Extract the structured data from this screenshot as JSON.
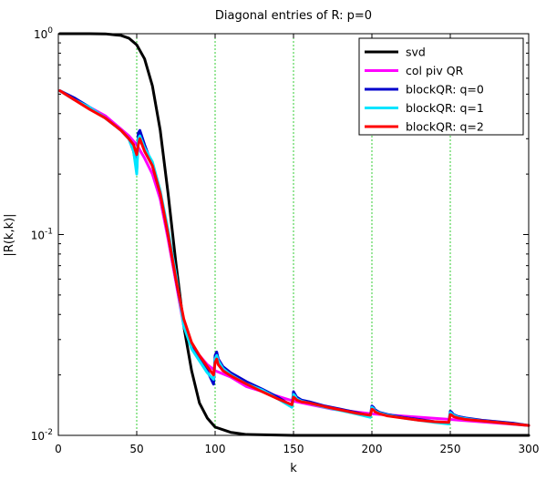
{
  "chart_data": {
    "type": "line",
    "title": "Diagonal entries of R: p=0",
    "xlabel": "k",
    "ylabel": "|R(k,k)|",
    "xlim": [
      0,
      300
    ],
    "ylim": [
      0.01,
      1
    ],
    "yscale": "log",
    "x_ticks": [
      0,
      50,
      100,
      150,
      200,
      250,
      300
    ],
    "y_ticks": [
      {
        "value": 1,
        "base": "10",
        "exp": "0"
      },
      {
        "value": 0.1,
        "base": "10",
        "exp": "-1"
      },
      {
        "value": 0.01,
        "base": "10",
        "exp": "-2"
      }
    ],
    "vlines": [
      50,
      100,
      150,
      200,
      250
    ],
    "vline_color": "#33cc33",
    "legend_position": "top-right",
    "series": [
      {
        "name": "svd",
        "color": "#000000",
        "x": [
          1,
          20,
          30,
          40,
          45,
          50,
          55,
          60,
          65,
          70,
          75,
          80,
          85,
          90,
          95,
          100,
          110,
          120,
          150,
          200,
          250,
          300
        ],
        "y": [
          1.0,
          1.0,
          0.998,
          0.98,
          0.95,
          0.88,
          0.75,
          0.55,
          0.33,
          0.16,
          0.072,
          0.035,
          0.021,
          0.0145,
          0.0122,
          0.011,
          0.01035,
          0.0101,
          0.01,
          0.01,
          0.01,
          0.01
        ]
      },
      {
        "name": "col piv QR",
        "color": "#ff00ff",
        "x": [
          1,
          10,
          20,
          30,
          40,
          45,
          50,
          55,
          60,
          65,
          70,
          75,
          80,
          85,
          90,
          95,
          100,
          110,
          120,
          150,
          175,
          200,
          250,
          300
        ],
        "y": [
          0.52,
          0.47,
          0.43,
          0.39,
          0.335,
          0.31,
          0.28,
          0.24,
          0.2,
          0.15,
          0.095,
          0.058,
          0.035,
          0.028,
          0.025,
          0.0225,
          0.021,
          0.0195,
          0.0175,
          0.0148,
          0.0135,
          0.0128,
          0.012,
          0.0112
        ]
      },
      {
        "name": "blockQR: q=0",
        "color": "#0000cc",
        "x": [
          1,
          10,
          20,
          30,
          40,
          45,
          48,
          50,
          51,
          52,
          55,
          60,
          65,
          70,
          75,
          80,
          85,
          90,
          95,
          99,
          100,
          101,
          102,
          105,
          110,
          120,
          130,
          140,
          149,
          150,
          151,
          152,
          155,
          160,
          170,
          180,
          190,
          199,
          200,
          201,
          202,
          205,
          210,
          220,
          230,
          240,
          249,
          250,
          251,
          252,
          255,
          260,
          270,
          280,
          290,
          300
        ],
        "y": [
          0.52,
          0.48,
          0.43,
          0.38,
          0.33,
          0.3,
          0.26,
          0.21,
          0.32,
          0.33,
          0.28,
          0.22,
          0.16,
          0.1,
          0.06,
          0.037,
          0.028,
          0.024,
          0.021,
          0.018,
          0.025,
          0.026,
          0.024,
          0.022,
          0.0205,
          0.0185,
          0.017,
          0.0155,
          0.014,
          0.0165,
          0.016,
          0.0155,
          0.015,
          0.0147,
          0.014,
          0.0135,
          0.013,
          0.0125,
          0.014,
          0.0138,
          0.0134,
          0.013,
          0.0127,
          0.0123,
          0.012,
          0.0117,
          0.0115,
          0.0132,
          0.013,
          0.0127,
          0.0124,
          0.0122,
          0.0119,
          0.0117,
          0.0115,
          0.0112
        ]
      },
      {
        "name": "blockQR: q=1",
        "color": "#00e5ff",
        "x": [
          1,
          10,
          20,
          30,
          40,
          45,
          48,
          50,
          51,
          52,
          55,
          60,
          65,
          70,
          75,
          80,
          85,
          90,
          95,
          99,
          100,
          101,
          102,
          105,
          110,
          120,
          130,
          140,
          149,
          150,
          151,
          152,
          155,
          160,
          170,
          180,
          190,
          199,
          200,
          201,
          202,
          205,
          210,
          220,
          230,
          240,
          249,
          250,
          251,
          252,
          255,
          260,
          270,
          280,
          290,
          300
        ],
        "y": [
          0.52,
          0.47,
          0.43,
          0.38,
          0.33,
          0.3,
          0.26,
          0.2,
          0.3,
          0.31,
          0.27,
          0.23,
          0.165,
          0.105,
          0.063,
          0.035,
          0.027,
          0.0235,
          0.0205,
          0.019,
          0.024,
          0.025,
          0.0235,
          0.0215,
          0.02,
          0.018,
          0.0168,
          0.0152,
          0.0138,
          0.016,
          0.0157,
          0.0152,
          0.0148,
          0.0145,
          0.0138,
          0.0133,
          0.0128,
          0.0123,
          0.0138,
          0.0136,
          0.0132,
          0.0129,
          0.0126,
          0.0122,
          0.0119,
          0.0116,
          0.0114,
          0.013,
          0.0128,
          0.0126,
          0.0123,
          0.0121,
          0.0118,
          0.0116,
          0.0114,
          0.0112
        ]
      },
      {
        "name": "blockQR: q=2",
        "color": "#ff0000",
        "x": [
          1,
          10,
          20,
          30,
          40,
          45,
          48,
          50,
          51,
          52,
          55,
          60,
          65,
          70,
          75,
          80,
          85,
          90,
          95,
          99,
          100,
          101,
          102,
          105,
          110,
          120,
          130,
          140,
          149,
          150,
          151,
          152,
          155,
          160,
          170,
          180,
          190,
          199,
          200,
          201,
          202,
          205,
          210,
          220,
          230,
          240,
          249,
          250,
          251,
          252,
          255,
          260,
          270,
          280,
          290,
          300
        ],
        "y": [
          0.52,
          0.47,
          0.42,
          0.38,
          0.33,
          0.3,
          0.28,
          0.25,
          0.28,
          0.3,
          0.26,
          0.22,
          0.16,
          0.1,
          0.06,
          0.038,
          0.029,
          0.025,
          0.022,
          0.02,
          0.023,
          0.024,
          0.0225,
          0.021,
          0.0198,
          0.018,
          0.0165,
          0.0152,
          0.0142,
          0.0155,
          0.0153,
          0.015,
          0.0147,
          0.0145,
          0.0139,
          0.0134,
          0.0129,
          0.0126,
          0.0135,
          0.0134,
          0.0131,
          0.0128,
          0.0125,
          0.0122,
          0.0119,
          0.0117,
          0.0116,
          0.0127,
          0.0126,
          0.0124,
          0.0122,
          0.012,
          0.0118,
          0.0116,
          0.0114,
          0.0112
        ]
      }
    ]
  }
}
